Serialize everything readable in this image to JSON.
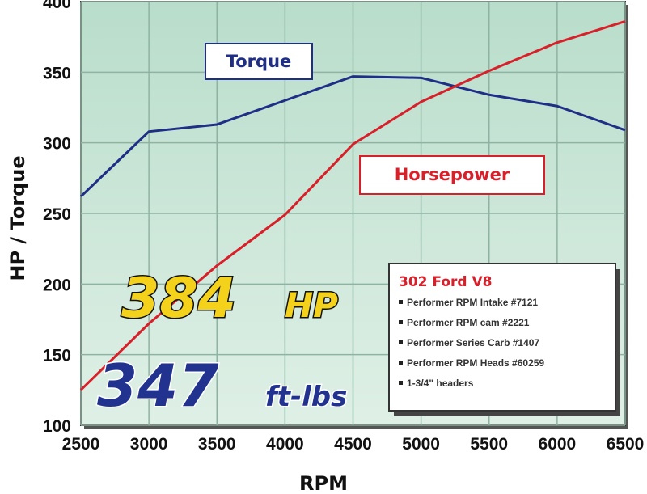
{
  "chart_data": {
    "type": "line",
    "xlabel": "RPM",
    "ylabel": "HP / Torque",
    "xlim": [
      2500,
      6500
    ],
    "ylim": [
      100,
      400
    ],
    "x": [
      2500,
      3000,
      3500,
      4000,
      4500,
      5000,
      5500,
      6000,
      6500
    ],
    "x_ticks": [
      "2500",
      "3000",
      "3500",
      "4000",
      "4500",
      "5000",
      "5500",
      "6000",
      "6500"
    ],
    "y_ticks": [
      "100",
      "150",
      "200",
      "250",
      "300",
      "350",
      "400"
    ],
    "grid": true,
    "series": [
      {
        "name": "Torque",
        "color": "#1f2e86",
        "values": [
          262,
          308,
          313,
          330,
          347,
          346,
          334,
          326,
          309
        ]
      },
      {
        "name": "Horsepower",
        "color": "#d8202a",
        "values": [
          125,
          172,
          213,
          249,
          299,
          329,
          351,
          371,
          386
        ]
      }
    ],
    "annotations": {
      "hp_value": "384",
      "hp_unit": "HP",
      "tq_value": "347",
      "tq_unit": "ft-lbs"
    },
    "info_box": {
      "title": "302 Ford V8",
      "items": [
        "Performer RPM Intake #7121",
        "Performer RPM cam #2221",
        "Performer Series Carb #1407",
        "Performer RPM Heads #60259",
        "1-3/4\" headers"
      ]
    },
    "plot_bg": "#c4e2d2"
  }
}
